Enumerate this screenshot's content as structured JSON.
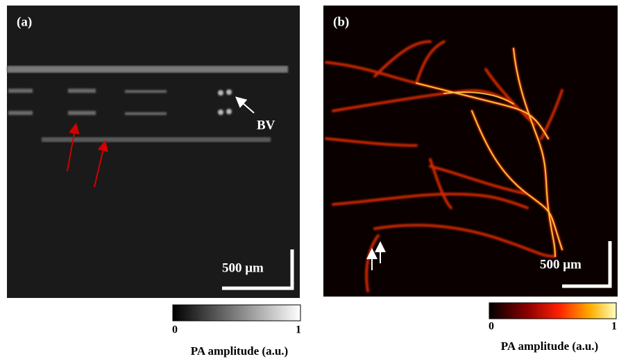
{
  "panels": [
    {
      "label": "(a)",
      "annotation": "BV",
      "scale_bar": "500 μm",
      "colorbar": {
        "ticks": [
          0,
          1
        ],
        "label": "PA amplitude  (a.u.)"
      }
    },
    {
      "label": "(b)",
      "scale_bar": "500 μm",
      "colorbar": {
        "ticks": [
          0,
          1
        ],
        "label": "PA amplitude  (a.u.)"
      }
    }
  ]
}
